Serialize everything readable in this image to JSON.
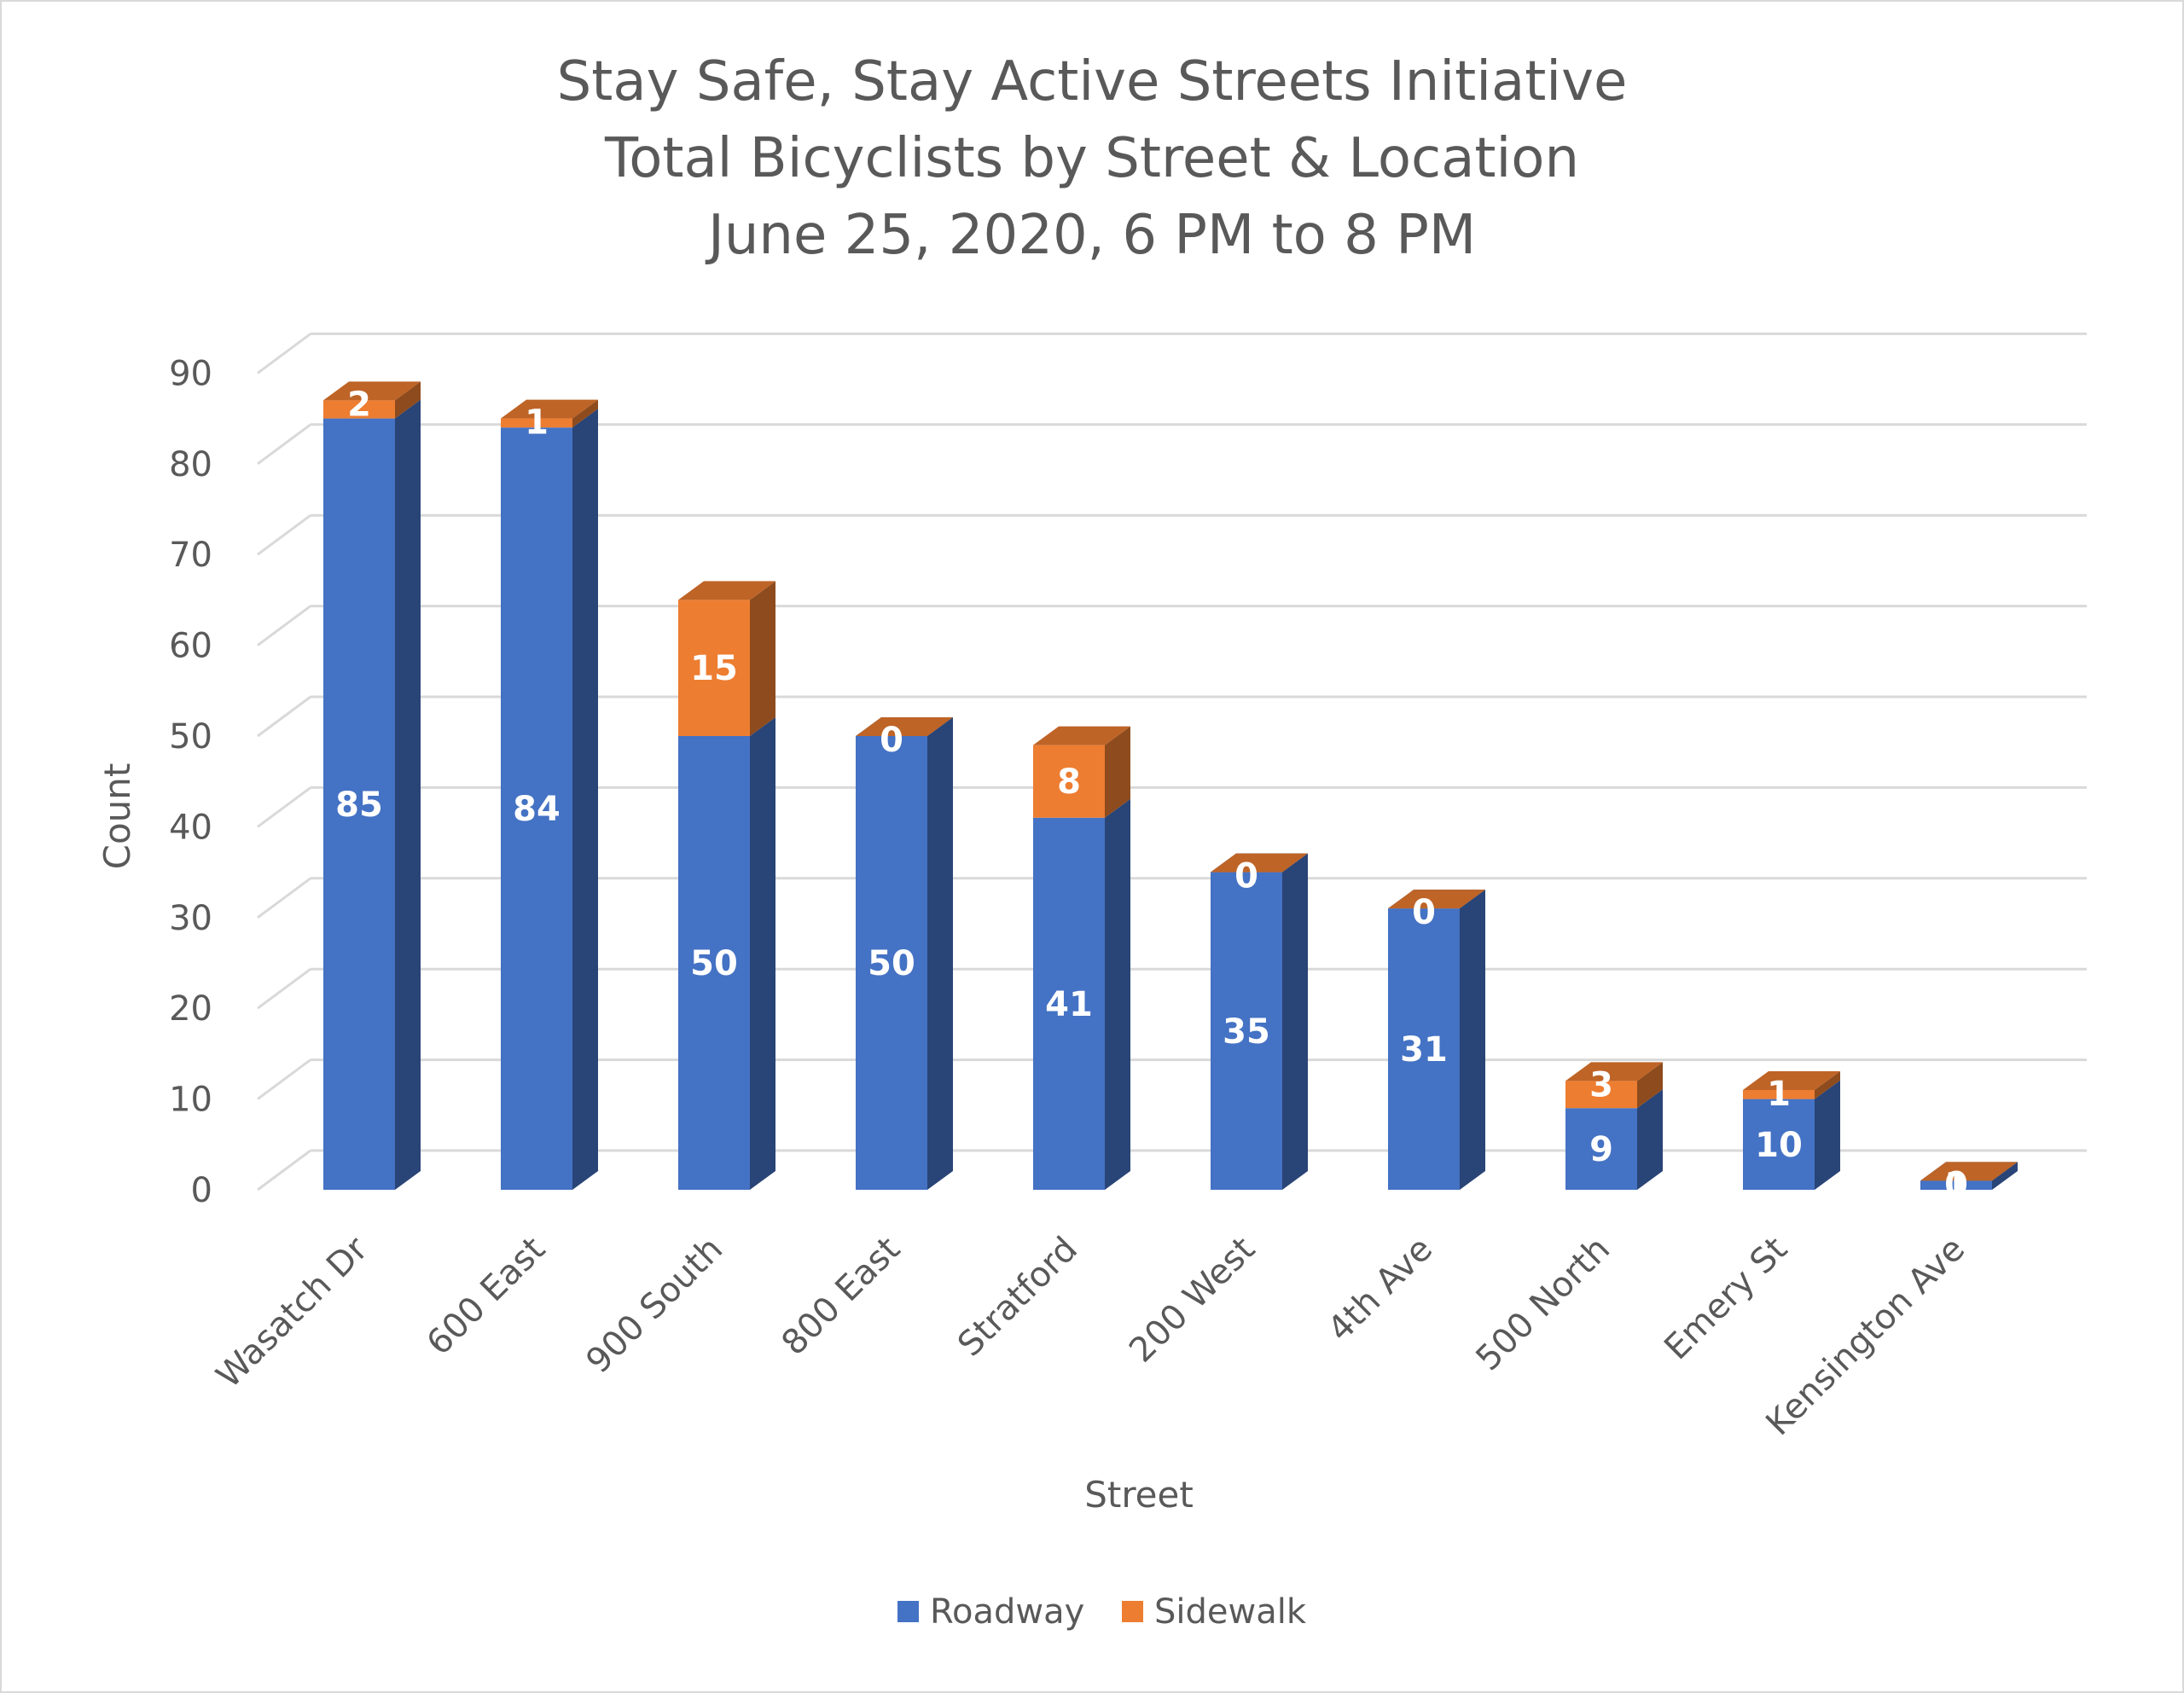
{
  "chart_data": {
    "type": "bar",
    "stacked": true,
    "style": "3d-column",
    "title": [
      "Stay Safe, Stay Active Streets Initiative",
      "Total Bicyclists by Street & Location",
      "June 25, 2020, 6 PM to 8 PM"
    ],
    "xlabel": "Street",
    "ylabel": "Count",
    "ylim": [
      0,
      90
    ],
    "yticks": [
      0,
      10,
      20,
      30,
      40,
      50,
      60,
      70,
      80,
      90
    ],
    "grid": true,
    "legend_position": "bottom",
    "categories": [
      "Wasatch Dr",
      "600 East",
      "900 South",
      "800 East",
      "Stratford",
      "200 West",
      "4th Ave",
      "500 North",
      "Emery St",
      "Kensington Ave"
    ],
    "series": [
      {
        "name": "Roadway",
        "color": "#4472c4",
        "values": [
          85,
          84,
          50,
          50,
          41,
          35,
          31,
          9,
          10,
          1
        ]
      },
      {
        "name": "Sidewalk",
        "color": "#ed7d31",
        "values": [
          2,
          1,
          15,
          0,
          8,
          0,
          0,
          3,
          1,
          0
        ]
      }
    ]
  }
}
